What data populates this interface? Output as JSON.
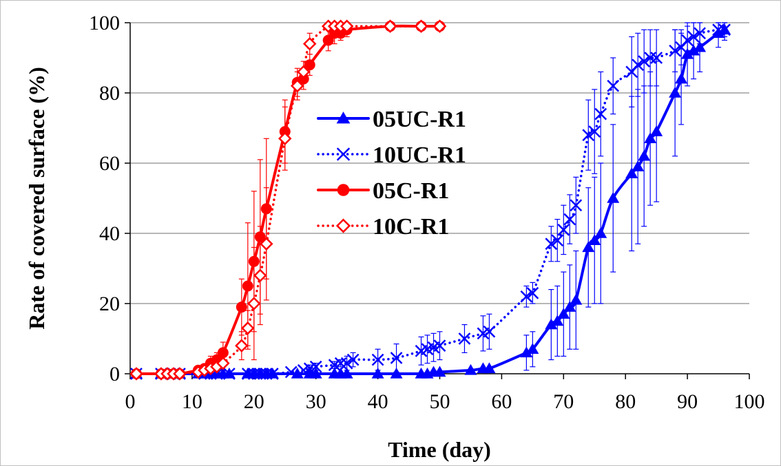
{
  "chart_data": {
    "type": "line",
    "title": "",
    "xlabel": "Time (day)",
    "ylabel": "Rate of covered surface (%)",
    "xlim": [
      0,
      100
    ],
    "ylim": [
      0,
      100
    ],
    "xticks": [
      0,
      10,
      20,
      30,
      40,
      50,
      60,
      70,
      80,
      90,
      100
    ],
    "yticks": [
      0,
      20,
      40,
      60,
      80,
      100
    ],
    "grid": "horizontal",
    "legend_position": "center-left",
    "series": [
      {
        "name": "05UC-R1",
        "color": "#0000FF",
        "marker": "triangle",
        "line_style": "solid",
        "x": [
          1,
          5,
          7,
          8,
          11,
          12,
          13,
          14,
          15,
          16,
          19,
          20,
          21,
          22,
          23,
          27,
          29,
          30,
          33,
          34,
          35,
          40,
          43,
          47,
          48,
          49,
          50,
          55,
          57,
          58,
          64,
          65,
          68,
          69,
          70,
          71,
          72,
          74,
          75,
          76,
          78,
          81,
          82,
          83,
          84,
          85,
          88,
          89,
          90,
          91,
          92,
          95,
          96
        ],
        "y": [
          0,
          0,
          0,
          0,
          0,
          0,
          0,
          0,
          0,
          0,
          0,
          0,
          0,
          0,
          0,
          0,
          0,
          0,
          0,
          0,
          0,
          0,
          0,
          0,
          0,
          0.5,
          0.5,
          1,
          1.5,
          1.5,
          6,
          7,
          14,
          15,
          17,
          19,
          21,
          36,
          38,
          40,
          50,
          57,
          59,
          62,
          67,
          69,
          80,
          84,
          91,
          92,
          93,
          97,
          98
        ],
        "error": [
          0,
          0,
          0,
          0,
          0,
          0,
          0,
          0,
          0,
          0,
          0,
          0,
          0,
          0,
          0,
          0,
          0,
          0,
          0,
          0,
          0,
          0,
          0,
          0,
          0,
          0,
          0,
          0,
          0,
          0,
          5,
          5,
          10,
          10,
          12,
          12,
          14,
          17,
          18,
          20,
          21,
          22,
          22,
          20,
          19,
          20,
          18,
          13,
          9,
          8,
          7,
          4,
          3
        ]
      },
      {
        "name": "10UC-R1",
        "color": "#0000FF",
        "marker": "x",
        "line_style": "dotted",
        "x": [
          1,
          5,
          7,
          8,
          12,
          13,
          14,
          16,
          19,
          20,
          21,
          22,
          23,
          26,
          28,
          29,
          30,
          33,
          34,
          35,
          36,
          40,
          43,
          47,
          48,
          49,
          50,
          54,
          57,
          58,
          64,
          65,
          68,
          69,
          70,
          71,
          72,
          74,
          75,
          76,
          78,
          81,
          82,
          83,
          84,
          85,
          88,
          89,
          90,
          91,
          92,
          95,
          96
        ],
        "y": [
          0,
          0,
          0,
          0,
          0,
          0,
          0,
          0,
          0,
          0,
          0,
          0,
          0,
          0.5,
          1,
          1.5,
          2,
          2.5,
          3,
          3,
          4,
          4,
          4.5,
          6.5,
          7,
          7.5,
          8,
          10,
          11.5,
          12,
          22,
          23,
          37,
          38,
          41,
          44,
          48,
          68,
          69,
          74,
          82,
          86,
          88,
          89,
          90,
          90,
          92,
          93,
          95,
          96,
          97,
          98,
          98
        ],
        "error": [
          0,
          0,
          0,
          0,
          0,
          0,
          0,
          0,
          0,
          0,
          0,
          0,
          0,
          0,
          0,
          1,
          1,
          1,
          1,
          2,
          2,
          3,
          4,
          4,
          4,
          4,
          4,
          4,
          5,
          5,
          3,
          3,
          5,
          6,
          7,
          7,
          8,
          10,
          12,
          12,
          8,
          10,
          9,
          9,
          8,
          8,
          6,
          5,
          4,
          4,
          3,
          2,
          2
        ]
      },
      {
        "name": "05C-R1",
        "color": "#FF0000",
        "marker": "circle",
        "line_style": "solid",
        "x": [
          1,
          5,
          6,
          7,
          8,
          11,
          12,
          13,
          14,
          15,
          18,
          19,
          20,
          21,
          22,
          25,
          27,
          28,
          29,
          32,
          33,
          34,
          35,
          42,
          47,
          50
        ],
        "y": [
          0,
          0,
          0,
          0,
          0,
          1,
          1.5,
          3,
          4,
          6,
          19,
          25,
          32,
          39,
          47,
          69,
          83,
          84,
          88,
          95,
          97,
          97,
          98,
          99,
          99,
          99
        ],
        "error": [
          0,
          0,
          0,
          0,
          0,
          1,
          1,
          2,
          2,
          3,
          8,
          18,
          20,
          22,
          20,
          9,
          4,
          3,
          3,
          3,
          3,
          2,
          2,
          1,
          1,
          1
        ]
      },
      {
        "name": "10C-R1",
        "color": "#FF0000",
        "marker": "diamond-open",
        "line_style": "dotted",
        "x": [
          1,
          5,
          6,
          7,
          8,
          11,
          12,
          13,
          14,
          15,
          18,
          19,
          20,
          21,
          22,
          25,
          27,
          28,
          29,
          32,
          33,
          34,
          35,
          42,
          47,
          50
        ],
        "y": [
          0,
          0,
          0,
          0,
          0,
          0.5,
          1,
          1.5,
          2,
          3,
          8,
          13,
          20,
          28,
          37,
          67,
          82,
          86,
          94,
          99,
          99,
          99,
          99,
          99,
          99,
          99
        ],
        "error": [
          0,
          0,
          0,
          0,
          0,
          1,
          1,
          1,
          1,
          2,
          4,
          5,
          16,
          14,
          16,
          9,
          4,
          3,
          3,
          1,
          1,
          1,
          1,
          1,
          1,
          1
        ]
      }
    ]
  }
}
